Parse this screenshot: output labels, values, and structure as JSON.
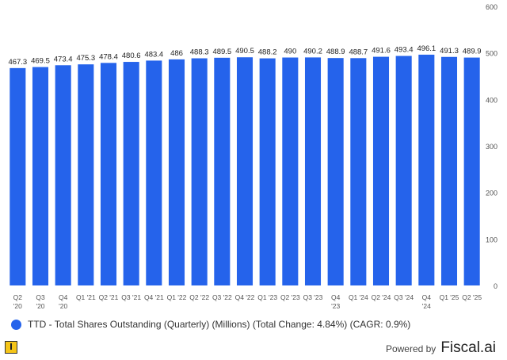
{
  "chart_data": {
    "type": "bar",
    "title": "",
    "categories": [
      "Q2 '20",
      "Q3 '20",
      "Q4 '20",
      "Q1 '21",
      "Q2 '21",
      "Q3 '21",
      "Q4 '21",
      "Q1 '22",
      "Q2 '22",
      "Q3 '22",
      "Q4 '22",
      "Q1 '23",
      "Q2 '23",
      "Q3 '23",
      "Q4 '23",
      "Q1 '24",
      "Q2 '24",
      "Q3 '24",
      "Q4 '24",
      "Q1 '25",
      "Q2 '25"
    ],
    "category_lines": [
      [
        "Q2",
        "'20"
      ],
      [
        "Q3",
        "'20"
      ],
      [
        "Q4",
        "'20"
      ],
      [
        "Q1 '21"
      ],
      [
        "Q2 '21"
      ],
      [
        "Q3 '21"
      ],
      [
        "Q4 '21"
      ],
      [
        "Q1 '22"
      ],
      [
        "Q2 '22"
      ],
      [
        "Q3 '22"
      ],
      [
        "Q4 '22"
      ],
      [
        "Q1 '23"
      ],
      [
        "Q2 '23"
      ],
      [
        "Q3 '23"
      ],
      [
        "Q4",
        "'23"
      ],
      [
        "Q1 '24"
      ],
      [
        "Q2 '24"
      ],
      [
        "Q3 '24"
      ],
      [
        "Q4",
        "'24"
      ],
      [
        "Q1 '25"
      ],
      [
        "Q2 '25"
      ]
    ],
    "values": [
      467.3,
      469.5,
      473.4,
      475.3,
      478.4,
      480.6,
      483.4,
      486,
      488.3,
      489.5,
      490.5,
      488.2,
      490,
      490.2,
      488.9,
      488.7,
      491.6,
      493.4,
      496.1,
      491.3,
      489.9
    ],
    "value_labels": [
      "467.3",
      "469.5",
      "473.4",
      "475.3",
      "478.4",
      "480.6",
      "483.4",
      "486",
      "488.3",
      "489.5",
      "490.5",
      "488.2",
      "490",
      "490.2",
      "488.9",
      "488.7",
      "491.6",
      "493.4",
      "496.1",
      "491.3",
      "489.9"
    ],
    "ylim": [
      0,
      600
    ],
    "yticks": [
      0,
      100,
      200,
      300,
      400,
      500,
      600
    ],
    "ytick_labels": [
      "0",
      "100",
      "200",
      "300",
      "400",
      "500",
      "600"
    ],
    "y_axis_side": "right",
    "grid": false,
    "bar_color": "#2563eb"
  },
  "legend": {
    "label": "TTD - Total Shares Outstanding (Quarterly) (Millions) (Total Change: 4.84%) (CAGR: 0.9%)",
    "color": "#2563eb"
  },
  "footer": {
    "powered_by": "Powered by",
    "brand": "Fiscal.ai"
  }
}
